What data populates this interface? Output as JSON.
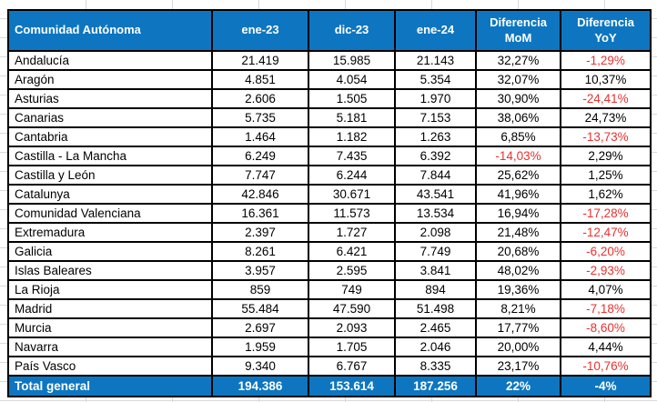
{
  "colors": {
    "header_bg": "#0E76C0",
    "header_text": "#FFFFFF",
    "negative_text": "#E8312F",
    "body_text": "#000000",
    "border": "#000000"
  },
  "table": {
    "columns": [
      "Comunidad Autónoma",
      "ene-23",
      "dic-23",
      "ene-24",
      "Diferencia MoM",
      "Diferencia YoY"
    ],
    "rows": [
      [
        "Andalucía",
        "21.419",
        "15.985",
        "21.143",
        "32,27%",
        "-1,29%"
      ],
      [
        "Aragón",
        "4.851",
        "4.054",
        "5.354",
        "32,07%",
        "10,37%"
      ],
      [
        "Asturias",
        "2.606",
        "1.505",
        "1.970",
        "30,90%",
        "-24,41%"
      ],
      [
        "Canarias",
        "5.735",
        "5.181",
        "7.153",
        "38,06%",
        "24,73%"
      ],
      [
        "Cantabria",
        "1.464",
        "1.182",
        "1.263",
        "6,85%",
        "-13,73%"
      ],
      [
        "Castilla - La Mancha",
        "6.249",
        "7.435",
        "6.392",
        "-14,03%",
        "2,29%"
      ],
      [
        "Castilla y León",
        "7.747",
        "6.244",
        "7.844",
        "25,62%",
        "1,25%"
      ],
      [
        "Catalunya",
        "42.846",
        "30.671",
        "43.541",
        "41,96%",
        "1,62%"
      ],
      [
        "Comunidad Valenciana",
        "16.361",
        "11.573",
        "13.534",
        "16,94%",
        "-17,28%"
      ],
      [
        "Extremadura",
        "2.397",
        "1.727",
        "2.098",
        "21,48%",
        "-12,47%"
      ],
      [
        "Galicia",
        "8.261",
        "6.421",
        "7.749",
        "20,68%",
        "-6,20%"
      ],
      [
        "Islas Baleares",
        "3.957",
        "2.595",
        "3.841",
        "48,02%",
        "-2,93%"
      ],
      [
        "La Rioja",
        "859",
        "749",
        "894",
        "19,36%",
        "4,07%"
      ],
      [
        "Madrid",
        "55.484",
        "47.590",
        "51.498",
        "8,21%",
        "-7,18%"
      ],
      [
        "Murcia",
        "2.697",
        "2.093",
        "2.465",
        "17,77%",
        "-8,60%"
      ],
      [
        "Navarra",
        "1.959",
        "1.705",
        "2.046",
        "20,00%",
        "4,44%"
      ],
      [
        "País Vasco",
        "9.340",
        "6.767",
        "8.335",
        "23,17%",
        "-10,76%"
      ]
    ],
    "total_row": [
      "Total general",
      "194.386",
      "153.614",
      "187.256",
      "22%",
      "-4%"
    ]
  }
}
